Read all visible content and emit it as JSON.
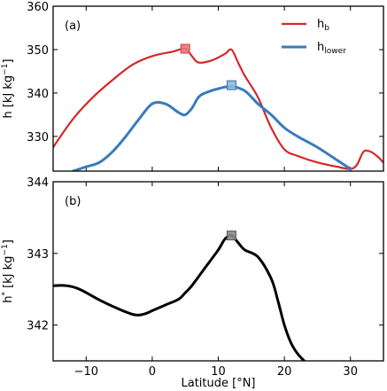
{
  "chart_data": [
    {
      "type": "line",
      "panel_label": "(a)",
      "ylabel_main": "h [kJ kg",
      "ylabel_sup": "−1",
      "ylabel_close": "]",
      "xlim": [
        -15,
        35
      ],
      "ylim": [
        322,
        360
      ],
      "xticks": [
        -10,
        0,
        10,
        20,
        30
      ],
      "yticks": [
        330,
        340,
        350,
        360
      ],
      "legend_position": "top-right",
      "series": [
        {
          "name": "h",
          "name_sub": "b",
          "color": "#d62728",
          "x": [
            -15,
            -12,
            -9,
            -6,
            -3,
            0,
            3,
            5,
            6,
            7,
            9,
            11,
            12,
            13,
            14,
            16,
            18,
            20,
            22,
            25,
            28,
            30,
            31,
            32,
            33,
            34,
            35
          ],
          "y": [
            327.5,
            334,
            339,
            343,
            346.5,
            348.5,
            349.5,
            350.2,
            348.5,
            347,
            347.5,
            349,
            350,
            347,
            344,
            339,
            332,
            327,
            325.5,
            324,
            323,
            322.5,
            323.5,
            326.5,
            326.5,
            325.5,
            324
          ],
          "marker": {
            "x": 5,
            "y": 350.2
          }
        },
        {
          "name": "h",
          "name_sub": "lower",
          "color": "#3a7bbd",
          "x": [
            -12,
            -10,
            -8,
            -6,
            -4,
            -2,
            0,
            2,
            4,
            5,
            6,
            7,
            8,
            10,
            12,
            14,
            16,
            18,
            20,
            22,
            25,
            28,
            30
          ],
          "y": [
            322,
            323,
            324,
            326.5,
            330,
            334,
            337.5,
            337.5,
            335.5,
            335,
            336.5,
            339,
            340,
            341,
            341.5,
            340.5,
            337.5,
            335,
            332,
            330,
            327.5,
            324.5,
            322.5
          ],
          "marker": {
            "x": 12,
            "y": 341.8
          }
        }
      ]
    },
    {
      "type": "line",
      "panel_label": "(b)",
      "ylabel_main": "h",
      "ylabel_sup": "*",
      "ylabel_rest": " [kJ kg",
      "ylabel_sup2": "−1",
      "ylabel_close": "]",
      "xlabel": "Latitude [°N]",
      "xlim": [
        -15,
        35
      ],
      "ylim": [
        341.5,
        344
      ],
      "xticks": [
        -10,
        0,
        10,
        20,
        30
      ],
      "yticks": [
        342,
        343,
        344
      ],
      "series": [
        {
          "color": "#000000",
          "x": [
            -15,
            -13,
            -11,
            -8,
            -5,
            -3,
            -2,
            -1,
            0,
            2,
            4,
            5,
            6,
            8,
            10,
            11,
            12,
            13,
            14,
            16,
            18,
            19,
            20,
            21,
            22,
            23
          ],
          "y": [
            342.55,
            342.55,
            342.5,
            342.35,
            342.22,
            342.15,
            342.14,
            342.16,
            342.2,
            342.28,
            342.36,
            342.45,
            342.55,
            342.8,
            343.05,
            343.2,
            343.25,
            343.15,
            343.05,
            342.95,
            342.65,
            342.35,
            342.0,
            341.75,
            341.6,
            341.5
          ],
          "marker": {
            "x": 12,
            "y": 343.25
          }
        }
      ]
    }
  ],
  "colors": {
    "hb": "#d62728",
    "hlower": "#3a7bbd",
    "hstar": "#000000",
    "marker_red": "#e8747c",
    "marker_blue": "#8fb8dc",
    "marker_gray": "#888888"
  }
}
